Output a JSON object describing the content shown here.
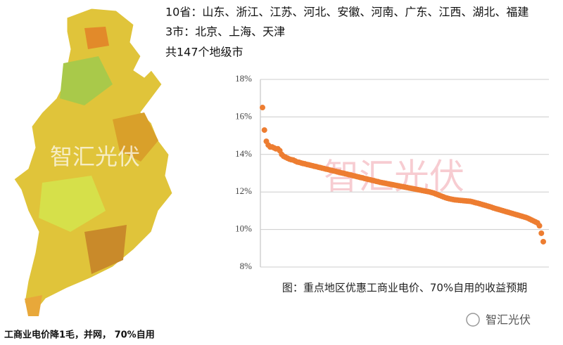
{
  "header": {
    "lines": [
      "10省：山东、浙江、江苏、河北、安徽、河南、广东、江西、湖北、福建",
      "3市：北京、上海、天津",
      "共147个地级市"
    ]
  },
  "map": {
    "caption": "工商业电价降1毛，并网， 70%自用",
    "watermark": "智汇光伏"
  },
  "logo": "智汇光伏",
  "chart_data": {
    "type": "scatter",
    "caption": "图：重点地区优惠工商业电价、70%自用的收益预期",
    "watermark": "智汇光伏",
    "color": "#ed7d31",
    "values": [
      16.5,
      15.3,
      14.7,
      14.5,
      14.4,
      14.4,
      14.35,
      14.3,
      14.3,
      14.2,
      14.0,
      13.9,
      13.85,
      13.8,
      13.75,
      13.72,
      13.7,
      13.65,
      13.6,
      13.58,
      13.55,
      13.52,
      13.5,
      13.47,
      13.45,
      13.42,
      13.4,
      13.37,
      13.35,
      13.32,
      13.3,
      13.27,
      13.25,
      13.22,
      13.2,
      13.17,
      13.15,
      13.12,
      13.1,
      13.07,
      13.05,
      13.02,
      13.0,
      12.97,
      12.95,
      12.92,
      12.9,
      12.87,
      12.85,
      12.82,
      12.8,
      12.77,
      12.75,
      12.72,
      12.7,
      12.67,
      12.65,
      12.62,
      12.6,
      12.57,
      12.55,
      12.52,
      12.5,
      12.48,
      12.46,
      12.44,
      12.42,
      12.4,
      12.38,
      12.36,
      12.34,
      12.32,
      12.3,
      12.28,
      12.26,
      12.24,
      12.22,
      12.2,
      12.18,
      12.16,
      12.14,
      12.12,
      12.1,
      12.08,
      12.06,
      12.04,
      12.02,
      12.0,
      11.97,
      11.94,
      11.9,
      11.86,
      11.82,
      11.78,
      11.74,
      11.7,
      11.67,
      11.64,
      11.62,
      11.6,
      11.58,
      11.57,
      11.56,
      11.55,
      11.54,
      11.53,
      11.52,
      11.51,
      11.5,
      11.48,
      11.45,
      11.42,
      11.4,
      11.37,
      11.34,
      11.31,
      11.28,
      11.25,
      11.22,
      11.19,
      11.15,
      11.12,
      11.09,
      11.06,
      11.03,
      11.0,
      10.97,
      10.94,
      10.91,
      10.88,
      10.85,
      10.82,
      10.79,
      10.76,
      10.73,
      10.7,
      10.67,
      10.64,
      10.6,
      10.55,
      10.5,
      10.45,
      10.4,
      10.35,
      10.2,
      9.8,
      9.35
    ],
    "ylim": [
      8,
      18
    ],
    "yticks": [
      {
        "value": 8,
        "label": "8%"
      },
      {
        "value": 10,
        "label": "10%"
      },
      {
        "value": 12,
        "label": "12%"
      },
      {
        "value": 14,
        "label": "14%"
      },
      {
        "value": 16,
        "label": "16%"
      },
      {
        "value": 18,
        "label": "18%"
      }
    ],
    "grid": true
  }
}
